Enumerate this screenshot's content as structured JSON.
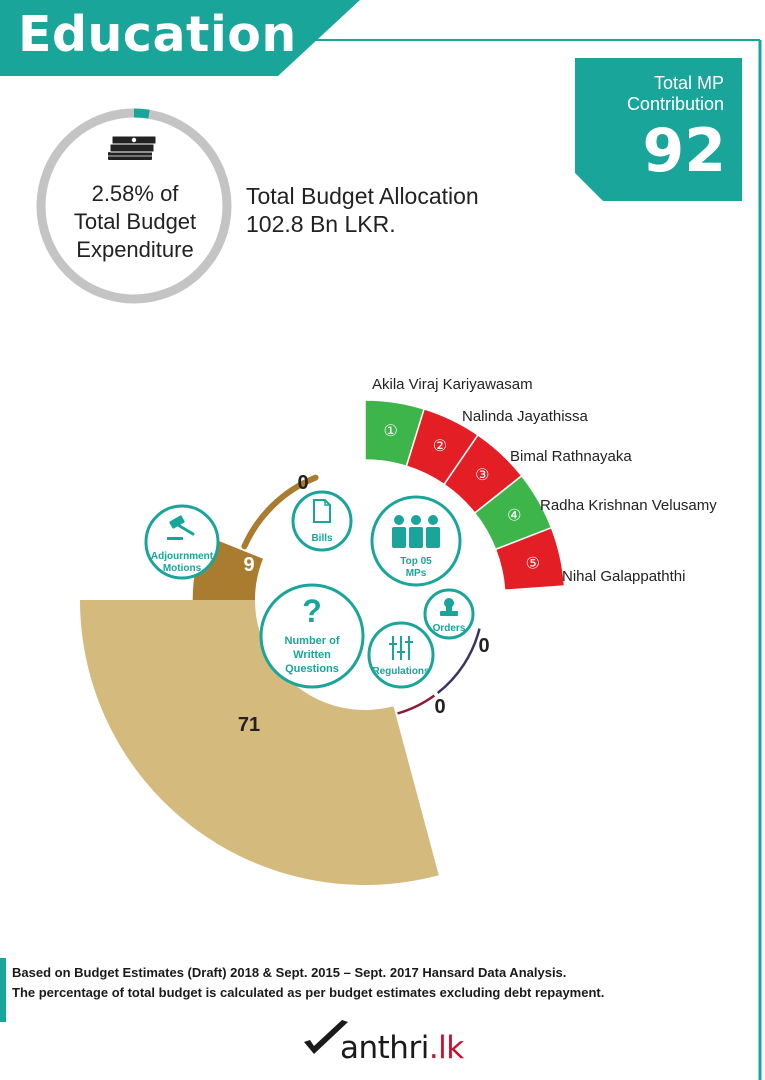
{
  "header": {
    "title": "Education"
  },
  "mp_contribution": {
    "label": "Total MP\nContribution",
    "label_line1": "Total MP",
    "label_line2": "Contribution",
    "value": "92"
  },
  "budget": {
    "percent_line1": "2.58% of",
    "percent_line2": "Total Budget",
    "percent_line3": "Expenditure",
    "percent_value": 2.58,
    "allocation_line1": "Total Budget Allocation",
    "allocation_line2": "102.8 Bn LKR."
  },
  "chart_data": {
    "type": "pie",
    "categories": [
      "Bills",
      "Adjournment Motions",
      "Number of Written Questions",
      "Regulations",
      "Orders"
    ],
    "values": [
      0,
      9,
      71,
      0,
      0
    ],
    "labels": [
      "0",
      "9",
      "71",
      "0",
      "0"
    ],
    "hub": {
      "bills": "Bills",
      "adjournment_line1": "Adjournment",
      "adjournment_line2": "Motions",
      "questions_line1": "Number of",
      "questions_line2": "Written",
      "questions_line3": "Questions",
      "regulations": "Regulations",
      "orders": "Orders",
      "top_line1": "Top 05",
      "top_line2": "MPs",
      "question_mark": "?"
    },
    "top_mps": [
      {
        "rank": "①",
        "name": "Akila Viraj Kariyawasam",
        "color": "#3db54a"
      },
      {
        "rank": "②",
        "name": "Nalinda Jayathissa",
        "color": "#e31e24"
      },
      {
        "rank": "③",
        "name": "Bimal Rathnayaka",
        "color": "#e31e24"
      },
      {
        "rank": "④",
        "name": "Radha Krishnan  Velusamy",
        "color": "#3db54a"
      },
      {
        "rank": "⑤",
        "name": "Nihal Galappaththi",
        "color": "#e31e24"
      }
    ]
  },
  "colors": {
    "teal": "#1aa59a",
    "gold": "#d4bb7d",
    "brown": "#a97c2f",
    "green": "#3db54a",
    "red": "#e31e24",
    "navy": "#3a3566",
    "maroon": "#8c1d34"
  },
  "footer": {
    "note_line1": "Based on Budget Estimates (Draft) 2018 & Sept. 2015 – Sept. 2017 Hansard Data Analysis.",
    "note_line2": "The percentage of  total budget is calculated as per budget estimates excluding debt repayment."
  },
  "brand": {
    "prefix": "M",
    "main": "anthri",
    "suffix": ".lk"
  }
}
